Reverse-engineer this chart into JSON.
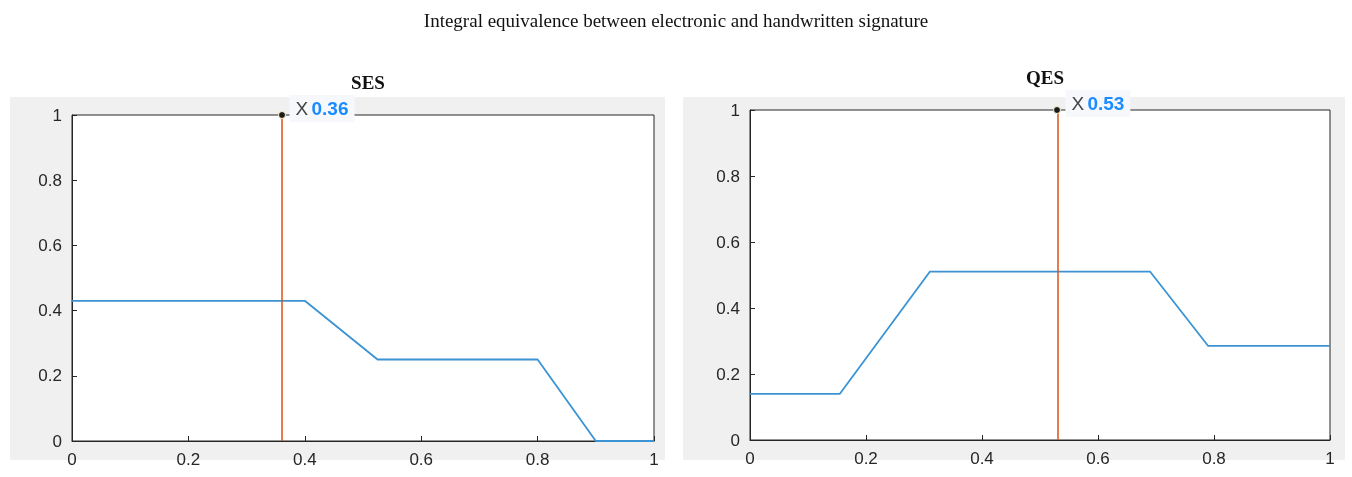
{
  "chart_data": [
    {
      "type": "line",
      "title": "SES",
      "annotations": [
        "Integral equivalence between electronic and handwritten signature"
      ],
      "x": [
        0,
        0.4,
        0.525,
        0.8,
        0.9,
        1
      ],
      "series": [
        {
          "color": "#3b93d3",
          "values": [
            0.43,
            0.43,
            0.25,
            0.25,
            0,
            0
          ]
        }
      ],
      "xlim": [
        0,
        1
      ],
      "xticks": [
        0,
        0.2,
        0.4,
        0.6,
        0.8,
        1
      ],
      "ylim": [
        0,
        1
      ],
      "yticks": [
        0,
        0.2,
        0.4,
        0.6,
        0.8,
        1
      ],
      "grid": false,
      "marker": "none",
      "line_style": "solid",
      "ref_lines": [
        {
          "axis": "x",
          "value": 0.36,
          "label": "X 0.36",
          "color": "#d95319"
        }
      ]
    },
    {
      "type": "line",
      "title": "QES",
      "x": [
        0,
        0.155,
        0.31,
        0.69,
        0.79,
        1
      ],
      "series": [
        {
          "color": "#3b93d3",
          "values": [
            0.14,
            0.14,
            0.51,
            0.51,
            0.285,
            0.285
          ]
        }
      ],
      "xlim": [
        0,
        1
      ],
      "xticks": [
        0,
        0.2,
        0.4,
        0.6,
        0.8,
        1
      ],
      "ylim": [
        0,
        1
      ],
      "yticks": [
        0,
        0.2,
        0.4,
        0.6,
        0.8,
        1
      ],
      "grid": false,
      "marker": "none",
      "line_style": "solid",
      "ref_lines": [
        {
          "axis": "x",
          "value": 0.53,
          "label": "X 0.53",
          "color": "#d95319"
        }
      ]
    }
  ]
}
